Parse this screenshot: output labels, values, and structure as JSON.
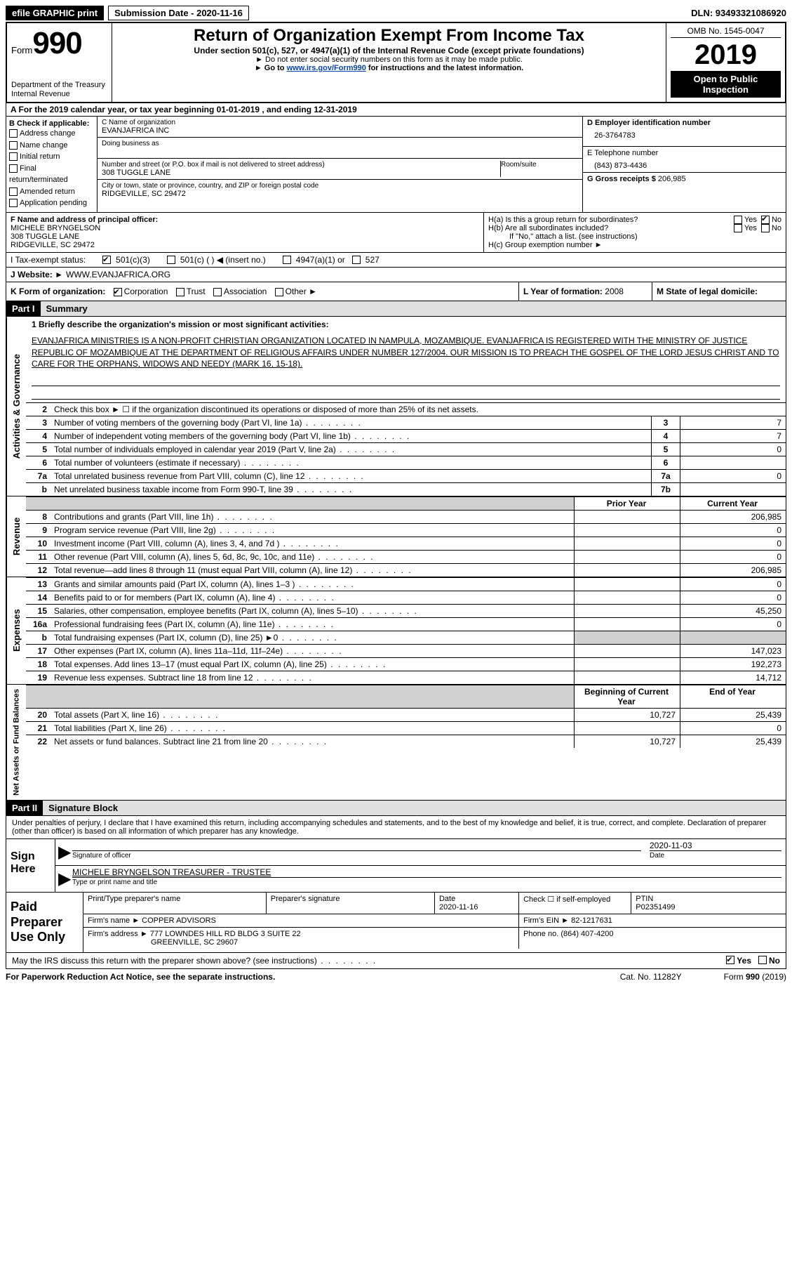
{
  "topbar": {
    "efile": "efile GRAPHIC print",
    "submission_label": "Submission Date - 2020-11-16",
    "dln": "DLN: 93493321086920"
  },
  "header": {
    "form_word": "Form",
    "form_num": "990",
    "dept": "Department of the Treasury\nInternal Revenue",
    "title": "Return of Organization Exempt From Income Tax",
    "subtitle": "Under section 501(c), 527, or 4947(a)(1) of the Internal Revenue Code (except private foundations)",
    "note1": "► Do not enter social security numbers on this form as it may be made public.",
    "note2_pre": "► Go to ",
    "note2_link": "www.irs.gov/Form990",
    "note2_post": " for instructions and the latest information.",
    "omb": "OMB No. 1545-0047",
    "year": "2019",
    "inspect": "Open to Public Inspection"
  },
  "rowA": "A For the 2019 calendar year, or tax year beginning 01-01-2019   , and ending 12-31-2019",
  "boxB": {
    "title": "B Check if applicable:",
    "items": [
      "Address change",
      "Name change",
      "Initial return",
      "Final return/terminated",
      "Amended return",
      "Application pending"
    ]
  },
  "boxC": {
    "label_name": "C Name of organization",
    "name": "EVANJAFRICA INC",
    "dba_label": "Doing business as",
    "addr_label": "Number and street (or P.O. box if mail is not delivered to street address)",
    "room_label": "Room/suite",
    "addr": "308 TUGGLE LANE",
    "city_label": "City or town, state or province, country, and ZIP or foreign postal code",
    "city": "RIDGEVILLE, SC  29472"
  },
  "boxD": {
    "label": "D Employer identification number",
    "value": "26-3764783"
  },
  "boxE": {
    "label": "E Telephone number",
    "value": "(843) 873-4436"
  },
  "boxG": {
    "label": "G Gross receipts $",
    "value": "206,985"
  },
  "boxF": {
    "label": "F  Name and address of principal officer:",
    "name": "MICHELE BRYNGELSON",
    "addr1": "308 TUGGLE LANE",
    "addr2": "RIDGEVILLE, SC  29472"
  },
  "boxH": {
    "a": "H(a)  Is this a group return for subordinates?",
    "b": "H(b)  Are all subordinates included?",
    "bnote": "If \"No,\" attach a list. (see instructions)",
    "c": "H(c)  Group exemption number ►",
    "yes": "Yes",
    "no": "No"
  },
  "rowI": {
    "label": "I   Tax-exempt status:",
    "opts": [
      "501(c)(3)",
      "501(c) (  ) ◀ (insert no.)",
      "4947(a)(1) or",
      "527"
    ]
  },
  "rowJ": {
    "label": "J   Website: ►",
    "value": "WWW.EVANJAFRICA.ORG"
  },
  "rowK": {
    "label": "K Form of organization:",
    "opts": [
      "Corporation",
      "Trust",
      "Association",
      "Other ►"
    ]
  },
  "rowL": {
    "label": "L Year of formation:",
    "value": "2008"
  },
  "rowM": {
    "label": "M State of legal domicile:",
    "value": ""
  },
  "part1": {
    "num": "Part I",
    "title": "Summary"
  },
  "mission_label": "1   Briefly describe the organization's mission or most significant activities:",
  "mission": "EVANJAFRICA MINISTRIES IS A NON-PROFIT CHRISTIAN ORGANIZATION LOCATED IN NAMPULA, MOZAMBIQUE. EVANJAFRICA IS REGISTERED WITH THE MINISTRY OF JUSTICE REPUBLIC OF MOZAMBIQUE AT THE DEPARTMENT OF RELIGIOUS AFFAIRS UNDER NUMBER 127/2004. OUR MISSION IS TO PREACH THE GOSPEL OF THE LORD JESUS CHRIST AND TO CARE FOR THE ORPHANS, WIDOWS AND NEEDY (MARK 16, 15-18).",
  "gov_lines": [
    {
      "n": "2",
      "t": "Check this box ► ☐  if the organization discontinued its operations or disposed of more than 25% of its net assets.",
      "box": "",
      "v": ""
    },
    {
      "n": "3",
      "t": "Number of voting members of the governing body (Part VI, line 1a)",
      "box": "3",
      "v": "7"
    },
    {
      "n": "4",
      "t": "Number of independent voting members of the governing body (Part VI, line 1b)",
      "box": "4",
      "v": "7"
    },
    {
      "n": "5",
      "t": "Total number of individuals employed in calendar year 2019 (Part V, line 2a)",
      "box": "5",
      "v": "0"
    },
    {
      "n": "6",
      "t": "Total number of volunteers (estimate if necessary)",
      "box": "6",
      "v": ""
    },
    {
      "n": "7a",
      "t": "Total unrelated business revenue from Part VIII, column (C), line 12",
      "box": "7a",
      "v": "0"
    },
    {
      "n": "b",
      "t": "Net unrelated business taxable income from Form 990-T, line 39",
      "box": "7b",
      "v": ""
    }
  ],
  "col_hdr": {
    "prior": "Prior Year",
    "current": "Current Year"
  },
  "rev_lines": [
    {
      "n": "8",
      "t": "Contributions and grants (Part VIII, line 1h)",
      "p": "",
      "c": "206,985"
    },
    {
      "n": "9",
      "t": "Program service revenue (Part VIII, line 2g)",
      "p": "",
      "c": "0"
    },
    {
      "n": "10",
      "t": "Investment income (Part VIII, column (A), lines 3, 4, and 7d )",
      "p": "",
      "c": "0"
    },
    {
      "n": "11",
      "t": "Other revenue (Part VIII, column (A), lines 5, 6d, 8c, 9c, 10c, and 11e)",
      "p": "",
      "c": "0"
    },
    {
      "n": "12",
      "t": "Total revenue—add lines 8 through 11 (must equal Part VIII, column (A), line 12)",
      "p": "",
      "c": "206,985"
    }
  ],
  "exp_lines": [
    {
      "n": "13",
      "t": "Grants and similar amounts paid (Part IX, column (A), lines 1–3 )",
      "p": "",
      "c": "0"
    },
    {
      "n": "14",
      "t": "Benefits paid to or for members (Part IX, column (A), line 4)",
      "p": "",
      "c": "0"
    },
    {
      "n": "15",
      "t": "Salaries, other compensation, employee benefits (Part IX, column (A), lines 5–10)",
      "p": "",
      "c": "45,250"
    },
    {
      "n": "16a",
      "t": "Professional fundraising fees (Part IX, column (A), line 11e)",
      "p": "",
      "c": "0"
    },
    {
      "n": "b",
      "t": "Total fundraising expenses (Part IX, column (D), line 25) ►0",
      "p": "shade",
      "c": "shade"
    },
    {
      "n": "17",
      "t": "Other expenses (Part IX, column (A), lines 11a–11d, 11f–24e)",
      "p": "",
      "c": "147,023"
    },
    {
      "n": "18",
      "t": "Total expenses. Add lines 13–17 (must equal Part IX, column (A), line 25)",
      "p": "",
      "c": "192,273"
    },
    {
      "n": "19",
      "t": "Revenue less expenses. Subtract line 18 from line 12",
      "p": "",
      "c": "14,712"
    }
  ],
  "bal_hdr": {
    "begin": "Beginning of Current Year",
    "end": "End of Year"
  },
  "bal_lines": [
    {
      "n": "20",
      "t": "Total assets (Part X, line 16)",
      "p": "10,727",
      "c": "25,439"
    },
    {
      "n": "21",
      "t": "Total liabilities (Part X, line 26)",
      "p": "",
      "c": "0"
    },
    {
      "n": "22",
      "t": "Net assets or fund balances. Subtract line 21 from line 20",
      "p": "10,727",
      "c": "25,439"
    }
  ],
  "vtabs": {
    "gov": "Activities & Governance",
    "rev": "Revenue",
    "exp": "Expenses",
    "bal": "Net Assets or Fund Balances"
  },
  "part2": {
    "num": "Part II",
    "title": "Signature Block"
  },
  "perjury": "Under penalties of perjury, I declare that I have examined this return, including accompanying schedules and statements, and to the best of my knowledge and belief, it is true, correct, and complete. Declaration of preparer (other than officer) is based on all information of which preparer has any knowledge.",
  "sign": {
    "here": "Sign Here",
    "sig_label": "Signature of officer",
    "date": "2020-11-03",
    "date_label": "Date",
    "name": "MICHELE BRYNGELSON  TREASURER - TRUSTEE",
    "name_label": "Type or print name and title"
  },
  "prep": {
    "left": "Paid Preparer Use Only",
    "h1": "Print/Type preparer's name",
    "h2": "Preparer's signature",
    "h3": "Date",
    "h3v": "2020-11-16",
    "h4": "Check ☐ if self-employed",
    "h5": "PTIN",
    "h5v": "P02351499",
    "firm_label": "Firm's name    ►",
    "firm": "COPPER ADVISORS",
    "ein_label": "Firm's EIN ►",
    "ein": "82-1217631",
    "addr_label": "Firm's address ►",
    "addr1": "777 LOWNDES HILL RD BLDG 3 SUITE 22",
    "addr2": "GREENVILLE, SC  29607",
    "phone_label": "Phone no.",
    "phone": "(864) 407-4200"
  },
  "discuss": {
    "text": "May the IRS discuss this return with the preparer shown above? (see instructions)",
    "yes": "Yes",
    "no": "No"
  },
  "footer": {
    "left": "For Paperwork Reduction Act Notice, see the separate instructions.",
    "mid": "Cat. No. 11282Y",
    "right_form": "Form ",
    "right_num": "990",
    "right_year": " (2019)"
  }
}
